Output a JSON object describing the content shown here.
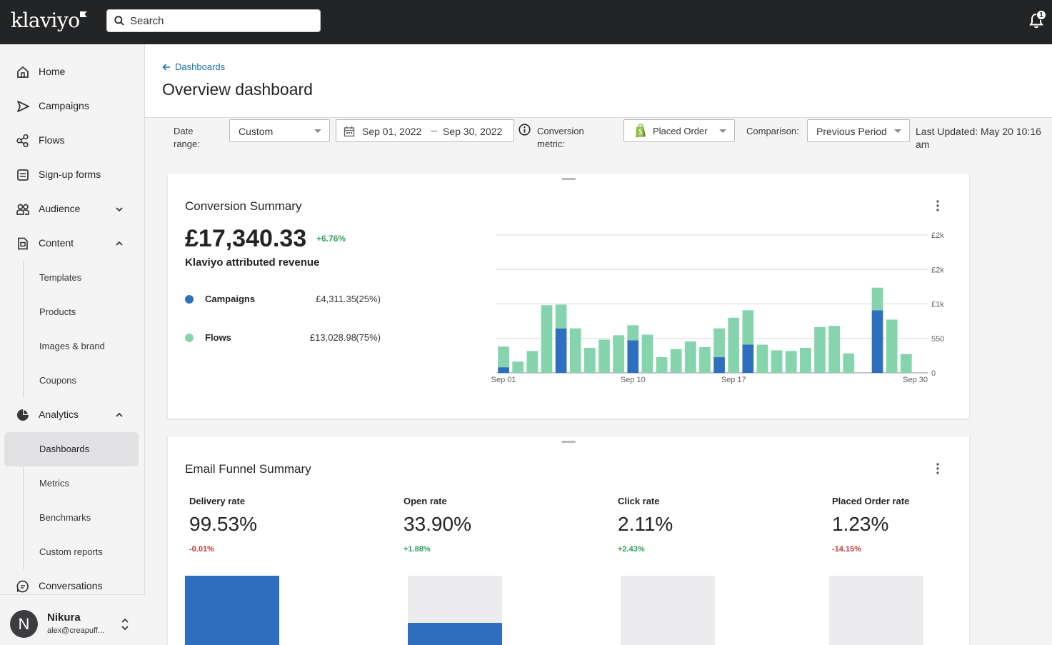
{
  "app": {
    "logo": "klaviyo",
    "search_placeholder": "Search",
    "notification_count": "1"
  },
  "sidebar": {
    "items": [
      {
        "label": "Home",
        "icon": "home-icon"
      },
      {
        "label": "Campaigns",
        "icon": "send-icon"
      },
      {
        "label": "Flows",
        "icon": "flow-icon"
      },
      {
        "label": "Sign-up forms",
        "icon": "form-icon"
      },
      {
        "label": "Audience",
        "icon": "people-icon"
      },
      {
        "label": "Content",
        "icon": "content-icon"
      }
    ],
    "content_sub": [
      "Templates",
      "Products",
      "Images & brand",
      "Coupons"
    ],
    "analytics": {
      "label": "Analytics",
      "icon": "pie-chart-icon"
    },
    "analytics_sub": [
      "Dashboards",
      "Metrics",
      "Benchmarks",
      "Custom reports"
    ],
    "conversations": {
      "label": "Conversations",
      "icon": "chat-icon"
    },
    "user": {
      "initial": "N",
      "name": "Nikura",
      "email": "alex@creapuff..."
    }
  },
  "header": {
    "breadcrumb": "Dashboards",
    "title": "Overview dashboard"
  },
  "filters": {
    "date_range_label": "Date range:",
    "date_range_value": "Custom",
    "date_start": "Sep 01, 2022",
    "date_end": "Sep 30, 2022",
    "conversion_label": "Conversion metric:",
    "conversion_value": "Placed Order",
    "comparison_label": "Comparison:",
    "comparison_value": "Previous Period",
    "last_updated": "Last Updated: May 20 10:16 am"
  },
  "conversion_summary": {
    "title": "Conversion Summary",
    "total": "£17,340.33",
    "delta": "+6.76%",
    "subtitle": "Klaviyo attributed revenue",
    "legend": [
      {
        "name": "Campaigns",
        "value": "£4,311.35",
        "pct": "(25%)",
        "color": "#2f6fc0"
      },
      {
        "name": "Flows",
        "value": "£13,028.98",
        "pct": "(75%)",
        "color": "#86d4ad"
      }
    ]
  },
  "chart_data": {
    "type": "bar",
    "stacked": true,
    "categories": [
      "Sep 01",
      "Sep 02",
      "Sep 03",
      "Sep 04",
      "Sep 05",
      "Sep 06",
      "Sep 07",
      "Sep 08",
      "Sep 09",
      "Sep 10",
      "Sep 11",
      "Sep 12",
      "Sep 13",
      "Sep 14",
      "Sep 15",
      "Sep 16",
      "Sep 17",
      "Sep 18",
      "Sep 19",
      "Sep 20",
      "Sep 21",
      "Sep 22",
      "Sep 23",
      "Sep 24",
      "Sep 25",
      "Sep 26",
      "Sep 27",
      "Sep 28",
      "Sep 29",
      "Sep 30"
    ],
    "x_tick_labels": [
      "Sep 01",
      "Sep 10",
      "Sep 17",
      "Sep 30"
    ],
    "y_tick_labels": [
      "0",
      "550",
      "£1k",
      "£2k",
      "£2k"
    ],
    "y_ticks": [
      0,
      550,
      1100,
      1650,
      2200
    ],
    "ylim": [
      0,
      2200
    ],
    "series": [
      {
        "name": "Campaigns",
        "color": "#2f6fc0",
        "values": [
          90,
          0,
          0,
          0,
          710,
          0,
          0,
          0,
          0,
          520,
          0,
          0,
          0,
          0,
          0,
          250,
          0,
          450,
          0,
          0,
          0,
          0,
          0,
          0,
          0,
          0,
          1000,
          0,
          0,
          0
        ]
      },
      {
        "name": "Flows",
        "color": "#86d4ad",
        "values": [
          330,
          180,
          350,
          1080,
          380,
          710,
          400,
          530,
          600,
          240,
          610,
          250,
          380,
          500,
          410,
          460,
          880,
          550,
          450,
          360,
          350,
          400,
          730,
          750,
          310,
          0,
          360,
          850,
          300,
          0
        ]
      }
    ]
  },
  "funnel": {
    "title": "Email Funnel Summary",
    "metrics": [
      {
        "label": "Delivery rate",
        "value": "99.53%",
        "delta": "-0.01%",
        "dir": "neg",
        "level": 0.9953
      },
      {
        "label": "Open rate",
        "value": "33.90%",
        "delta": "+1.88%",
        "dir": "pos",
        "level": 0.339
      },
      {
        "label": "Click rate",
        "value": "2.11%",
        "delta": "+2.43%",
        "dir": "pos",
        "level": 0.0211
      },
      {
        "label": "Placed Order rate",
        "value": "1.23%",
        "delta": "-14.15%",
        "dir": "neg",
        "level": 0.0123
      }
    ]
  }
}
